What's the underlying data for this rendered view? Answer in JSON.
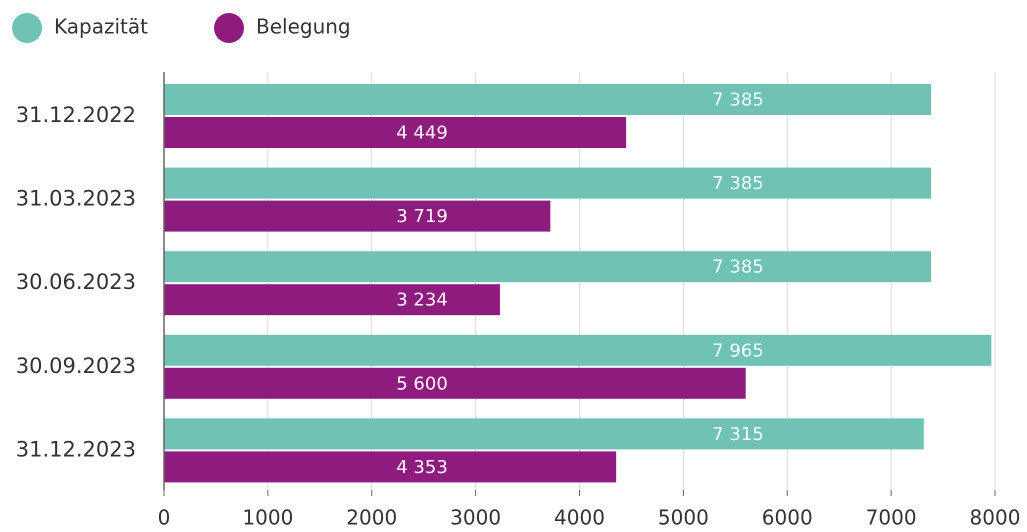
{
  "chart_data": {
    "type": "bar",
    "orientation": "horizontal",
    "categories": [
      "31.12.2022",
      "31.03.2023",
      "30.06.2023",
      "30.09.2023",
      "31.12.2023"
    ],
    "series": [
      {
        "name": "Kapazität",
        "color": "#6fc2b4",
        "values": [
          7385,
          7385,
          7385,
          7965,
          7315
        ],
        "value_labels": [
          "7 385",
          "7 385",
          "7 385",
          "7 965",
          "7 315"
        ]
      },
      {
        "name": "Belegung",
        "color": "#8e1b7e",
        "values": [
          4449,
          3719,
          3234,
          5600,
          4353
        ],
        "value_labels": [
          "4 449",
          "3 719",
          "3 234",
          "5 600",
          "4 353"
        ]
      }
    ],
    "xlim": [
      0,
      8000
    ],
    "xticks": [
      0,
      1000,
      2000,
      3000,
      4000,
      5000,
      6000,
      7000,
      8000
    ],
    "grid": true
  }
}
